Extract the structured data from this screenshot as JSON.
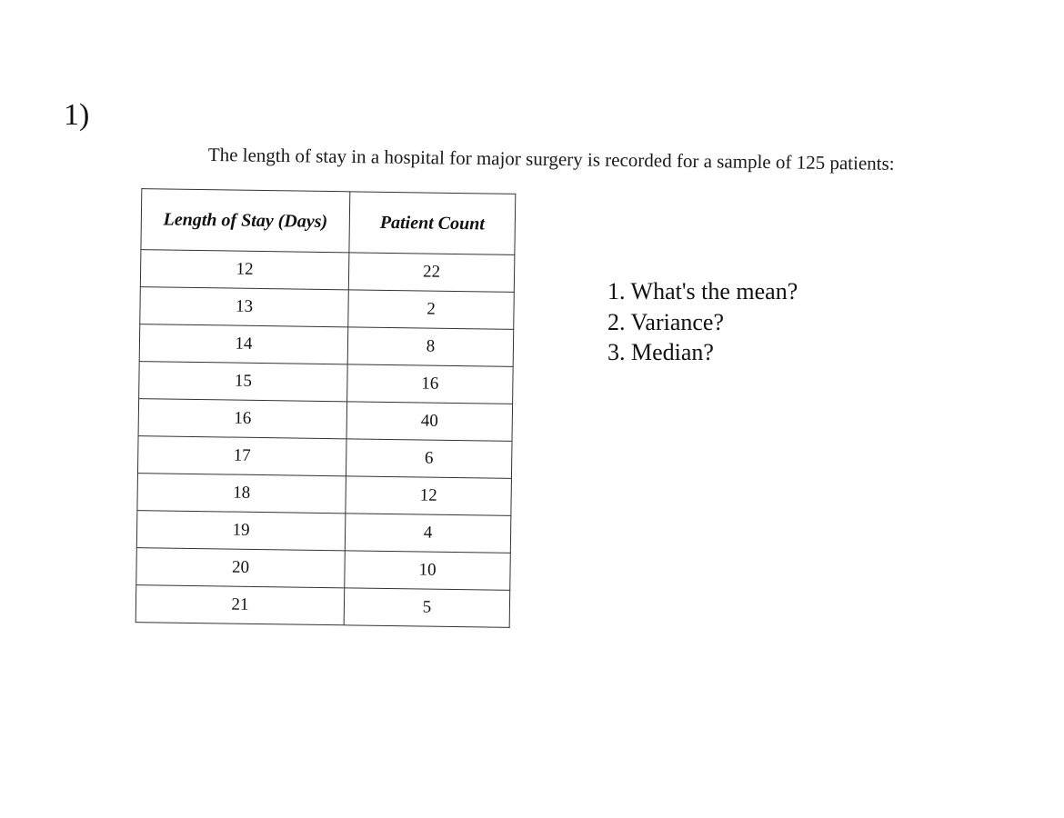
{
  "problem_number": "1)",
  "intro": "The length of stay in a hospital for major surgery is recorded for a sample of 125 patients:",
  "table": {
    "headers": [
      "Length of Stay (Days)",
      "Patient Count"
    ],
    "rows": [
      [
        "12",
        "22"
      ],
      [
        "13",
        "2"
      ],
      [
        "14",
        "8"
      ],
      [
        "15",
        "16"
      ],
      [
        "16",
        "40"
      ],
      [
        "17",
        "6"
      ],
      [
        "18",
        "12"
      ],
      [
        "19",
        "4"
      ],
      [
        "20",
        "10"
      ],
      [
        "21",
        "5"
      ]
    ]
  },
  "questions": [
    "1. What's the mean?",
    "2. Variance?",
    "3. Median?"
  ]
}
